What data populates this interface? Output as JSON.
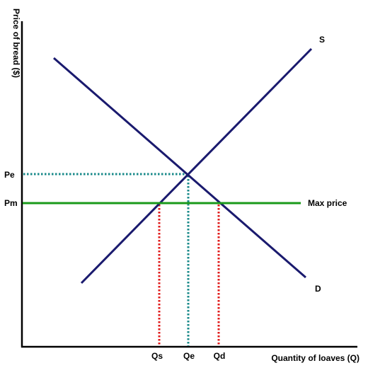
{
  "axes": {
    "y_title": "Price of bread ($)",
    "x_title": "Quantity of loaves (Q)"
  },
  "curves": {
    "supply_label": "S",
    "demand_label": "D",
    "max_price_label": "Max price"
  },
  "y_marks": {
    "pe": "Pe",
    "pm": "Pm"
  },
  "x_marks": {
    "qs": "Qs",
    "qe": "Qe",
    "qd": "Qd"
  },
  "colors": {
    "curve": "#1a1a6e",
    "max_price_line": "#1a9a1a",
    "equilibrium_guide": "#1a8a8a",
    "shortage_guide": "#e01b1b",
    "axis": "#000000"
  }
}
